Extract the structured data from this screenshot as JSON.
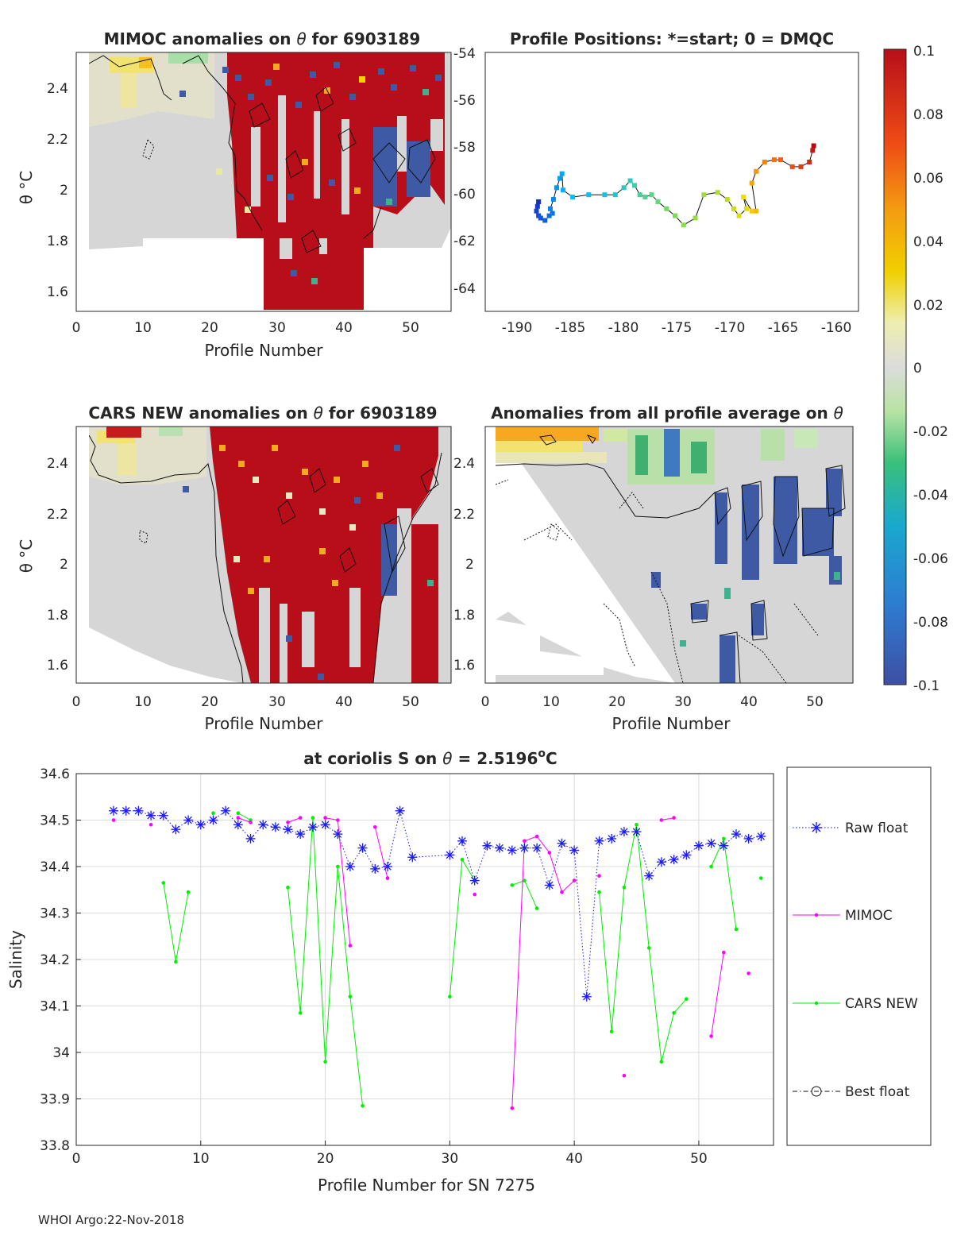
{
  "figure_footer": "WHOI Argo:22-Nov-2018",
  "chart_data": [
    {
      "id": "mimoc",
      "type": "heatmap",
      "title": "MIMOC anomalies on θ  for 6903189",
      "title_prefix": "MIMOC anomalies on",
      "title_sym": "θ",
      "title_suffix": " for 6903189",
      "xlabel": "Profile Number",
      "ylabel": "θ °C",
      "xlim": [
        0,
        56
      ],
      "ylim": [
        1.52,
        2.54
      ],
      "xticks": [
        "0",
        "10",
        "20",
        "30",
        "40",
        "50"
      ],
      "yticks": [
        "1.6",
        "1.8",
        "2",
        "2.2",
        "2.4"
      ],
      "right_ticks": [
        "-54",
        "-56",
        "-58",
        "-60",
        "-62",
        "-64"
      ]
    },
    {
      "id": "positions",
      "type": "scatter",
      "title": "Profile Positions: *=start; 0 = DMQC",
      "xticks": [
        "-190",
        "-185",
        "-180",
        "-175",
        "-170",
        "-165",
        "-160"
      ],
      "xlim": [
        -192,
        -157
      ],
      "ylim": [
        -65.0,
        -53.9
      ],
      "track": [
        [
          -187.0,
          -60.3
        ],
        [
          -187.1,
          -60.5
        ],
        [
          -187.2,
          -60.7
        ],
        [
          -187.0,
          -60.9
        ],
        [
          -186.8,
          -61.0
        ],
        [
          -186.4,
          -61.1
        ],
        [
          -186.0,
          -60.9
        ],
        [
          -185.7,
          -60.8
        ],
        [
          -185.9,
          -60.6
        ],
        [
          -185.6,
          -60.2
        ],
        [
          -185.3,
          -59.7
        ],
        [
          -185.0,
          -59.3
        ],
        [
          -184.8,
          -59.1
        ],
        [
          -184.7,
          -59.8
        ],
        [
          -183.8,
          -60.1
        ],
        [
          -182.3,
          -60.0
        ],
        [
          -180.8,
          -60.0
        ],
        [
          -179.8,
          -60.0
        ],
        [
          -179.0,
          -59.7
        ],
        [
          -178.4,
          -59.4
        ],
        [
          -178.0,
          -59.6
        ],
        [
          -177.5,
          -60.0
        ],
        [
          -177.0,
          -60.1
        ],
        [
          -176.4,
          -60.0
        ],
        [
          -175.8,
          -60.3
        ],
        [
          -175.0,
          -60.6
        ],
        [
          -174.2,
          -60.9
        ],
        [
          -173.4,
          -61.3
        ],
        [
          -172.3,
          -61.0
        ],
        [
          -171.5,
          -60.0
        ],
        [
          -170.2,
          -59.9
        ],
        [
          -169.3,
          -60.2
        ],
        [
          -168.7,
          -60.6
        ],
        [
          -168.2,
          -60.9
        ],
        [
          -167.5,
          -60.6
        ],
        [
          -167.8,
          -60.1
        ],
        [
          -167.0,
          -60.7
        ],
        [
          -166.6,
          -60.7
        ],
        [
          -167.0,
          -59.5
        ],
        [
          -166.6,
          -59.0
        ],
        [
          -165.8,
          -58.6
        ],
        [
          -164.9,
          -58.5
        ],
        [
          -164.3,
          -58.5
        ],
        [
          -163.2,
          -58.8
        ],
        [
          -162.4,
          -58.8
        ],
        [
          -161.6,
          -58.6
        ],
        [
          -161.3,
          -58.1
        ],
        [
          -161.2,
          -57.9
        ]
      ]
    },
    {
      "id": "cars",
      "type": "heatmap",
      "title": "CARS NEW anomalies on θ for 6903189",
      "title_prefix": "CARS NEW anomalies on",
      "title_sym": "θ",
      "title_suffix": " for 6903189",
      "xlabel": "Profile Number",
      "ylabel": "θ °C",
      "xlim": [
        0,
        56
      ],
      "ylim": [
        1.52,
        2.54
      ],
      "xticks": [
        "0",
        "10",
        "20",
        "30",
        "40",
        "50"
      ],
      "yticks": [
        "1.6",
        "1.8",
        "2",
        "2.2",
        "2.4"
      ]
    },
    {
      "id": "avg",
      "type": "heatmap",
      "title": "Anomalies from all profile average on θ",
      "title_prefix": "Anomalies from all profile average on",
      "title_sym": "θ",
      "xlabel": "Profile Number",
      "xlim": [
        0,
        56
      ],
      "ylim": [
        1.52,
        2.54
      ],
      "xticks": [
        "0",
        "10",
        "20",
        "30",
        "40",
        "50"
      ],
      "yticks": [
        "1.6",
        "1.8",
        "2",
        "2.2",
        "2.4"
      ]
    },
    {
      "id": "colorbar",
      "type": "colorbar",
      "range": [
        -0.1,
        0.1
      ],
      "ticks": [
        "0.1",
        "0.08",
        "0.06",
        "0.04",
        "0.02",
        "0",
        "-0.02",
        "-0.04",
        "-0.06",
        "-0.08",
        "-0.1"
      ]
    },
    {
      "id": "salinity",
      "type": "line",
      "title": "at coriolis S on θ = 2.5196°C",
      "title_prefix": "at coriolis S on",
      "title_sym": "θ",
      "title_mid": " = 2.5196",
      "title_sup": "o",
      "title_suffix": "C",
      "xlabel": "Profile Number for SN 7275",
      "ylabel": "Salinity",
      "xlim": [
        0,
        56
      ],
      "ylim": [
        33.8,
        34.6
      ],
      "xticks": [
        "0",
        "10",
        "20",
        "30",
        "40",
        "50"
      ],
      "yticks": [
        "33.8",
        "33.9",
        "34",
        "34.1",
        "34.2",
        "34.3",
        "34.4",
        "34.5",
        "34.6"
      ],
      "legend": [
        "Raw float",
        "MIMOC",
        "CARS NEW",
        "Best float"
      ],
      "series": [
        {
          "name": "Raw float",
          "color": "#1a1aff",
          "segments": [
            [
              [
                3,
                34.52
              ],
              [
                4,
                34.52
              ],
              [
                5,
                34.52
              ],
              [
                6,
                34.51
              ],
              [
                7,
                34.51
              ],
              [
                8,
                34.48
              ],
              [
                9,
                34.5
              ],
              [
                10,
                34.49
              ],
              [
                11,
                34.5
              ],
              [
                12,
                34.52
              ],
              [
                13,
                34.49
              ],
              [
                14,
                34.46
              ],
              [
                15,
                34.49
              ],
              [
                16,
                34.485
              ],
              [
                17,
                34.48
              ],
              [
                18,
                34.47
              ],
              [
                19,
                34.485
              ],
              [
                20,
                34.49
              ],
              [
                21,
                34.47
              ],
              [
                22,
                34.4
              ],
              [
                23,
                34.44
              ],
              [
                24,
                34.395
              ],
              [
                25,
                34.4
              ],
              [
                26,
                34.52
              ],
              [
                27,
                34.42
              ],
              [
                30,
                34.425
              ],
              [
                31,
                34.455
              ],
              [
                32,
                34.37
              ],
              [
                33,
                34.445
              ],
              [
                34,
                34.44
              ],
              [
                35,
                34.435
              ],
              [
                36,
                34.44
              ],
              [
                37,
                34.44
              ],
              [
                38,
                34.36
              ],
              [
                39,
                34.45
              ],
              [
                40,
                34.435
              ],
              [
                41,
                34.12
              ],
              [
                42,
                34.455
              ],
              [
                43,
                34.46
              ],
              [
                44,
                34.475
              ],
              [
                45,
                34.475
              ],
              [
                46,
                34.38
              ],
              [
                47,
                34.41
              ],
              [
                48,
                34.415
              ],
              [
                49,
                34.425
              ],
              [
                50,
                34.445
              ],
              [
                51,
                34.45
              ],
              [
                52,
                34.445
              ],
              [
                53,
                34.47
              ],
              [
                54,
                34.46
              ],
              [
                55,
                34.465
              ]
            ]
          ]
        },
        {
          "name": "MIMOC",
          "color": "#ff00ff",
          "segments": [
            [
              [
                3,
                34.5
              ]
            ],
            [
              [
                6,
                34.49
              ]
            ],
            [
              [
                13,
                34.505
              ],
              [
                14,
                34.495
              ]
            ],
            [
              [
                17,
                34.495
              ],
              [
                18,
                34.505
              ]
            ],
            [
              [
                20,
                34.505
              ],
              [
                21,
                34.5
              ],
              [
                22,
                34.23
              ]
            ],
            [
              [
                24,
                34.485
              ],
              [
                25,
                34.375
              ]
            ],
            [
              [
                32,
                34.34
              ]
            ],
            [
              [
                35,
                33.88
              ],
              [
                36,
                34.455
              ],
              [
                37,
                34.465
              ],
              [
                38,
                34.43
              ],
              [
                39,
                34.345
              ],
              [
                40,
                34.37
              ]
            ],
            [
              [
                42,
                34.38
              ]
            ],
            [
              [
                44,
                33.95
              ]
            ],
            [
              [
                47,
                34.5
              ],
              [
                48,
                34.505
              ]
            ],
            [
              [
                51,
                34.035
              ],
              [
                52,
                34.215
              ]
            ],
            [
              [
                54,
                34.17
              ]
            ]
          ]
        },
        {
          "name": "CARS NEW",
          "color": "#00ee00",
          "segments": [
            [
              [
                7,
                34.365
              ],
              [
                8,
                34.195
              ],
              [
                9,
                34.345
              ]
            ],
            [
              [
                11,
                34.515
              ]
            ],
            [
              [
                13,
                34.515
              ],
              [
                14,
                34.5
              ]
            ],
            [
              [
                17,
                34.355
              ],
              [
                18,
                34.085
              ],
              [
                19,
                34.505
              ],
              [
                20,
                33.98
              ],
              [
                21,
                34.4
              ],
              [
                22,
                34.12
              ],
              [
                23,
                33.885
              ]
            ],
            [
              [
                25,
                34.375
              ]
            ],
            [
              [
                30,
                34.12
              ],
              [
                31,
                34.415
              ],
              [
                32,
                34.37
              ]
            ],
            [
              [
                35,
                34.36
              ],
              [
                36,
                34.37
              ],
              [
                37,
                34.31
              ]
            ],
            [
              [
                42,
                34.345
              ],
              [
                43,
                34.045
              ],
              [
                44,
                34.355
              ],
              [
                45,
                34.49
              ],
              [
                46,
                34.225
              ],
              [
                47,
                33.98
              ],
              [
                48,
                34.085
              ],
              [
                49,
                34.115
              ]
            ],
            [
              [
                51,
                34.4
              ],
              [
                52,
                34.46
              ],
              [
                53,
                34.265
              ]
            ],
            [
              [
                55,
                34.375
              ]
            ]
          ]
        }
      ]
    }
  ]
}
